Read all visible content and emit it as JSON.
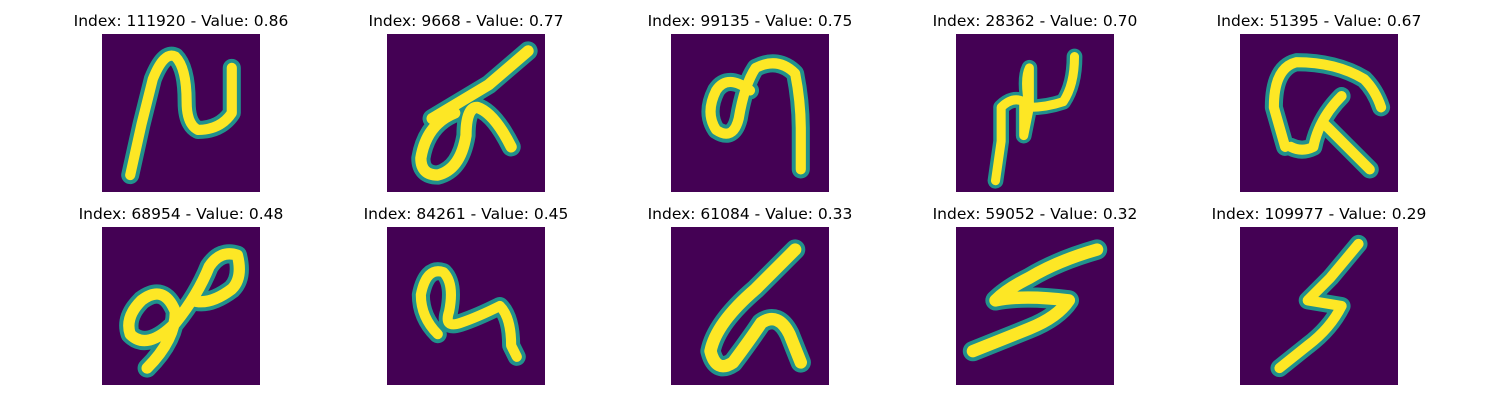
{
  "colors": {
    "background": "#440154",
    "mid": "#21918c",
    "bright": "#fde725"
  },
  "panels": [
    {
      "title": "Index: 111920 - Value: 0.86",
      "image": "handwritten glyph resembling an N shape"
    },
    {
      "title": "Index: 9668 - Value: 0.77",
      "image": "handwritten glyph with a loop and a long diagonal stroke"
    },
    {
      "title": "Index: 99135 - Value: 0.75",
      "image": "handwritten glyph resembling a looped 9"
    },
    {
      "title": "Index: 28362 - Value: 0.70",
      "image": "handwritten glyph resembling a small n with a descending tail"
    },
    {
      "title": "Index: 51395 - Value: 0.67",
      "image": "handwritten glyph with a top bar and crossed legs"
    },
    {
      "title": "Index: 68954 - Value: 0.48",
      "image": "handwritten glyph resembling a figure eight on its side"
    },
    {
      "title": "Index: 84261 - Value: 0.45",
      "image": "handwritten glyph resembling a loop followed by a hook"
    },
    {
      "title": "Index: 61084 - Value: 0.33",
      "image": "handwritten glyph resembling a looped 6 or G"
    },
    {
      "title": "Index: 59052 - Value: 0.32",
      "image": "handwritten glyph resembling a zigzag lightning bolt"
    },
    {
      "title": "Index: 109977 - Value: 0.29",
      "image": "handwritten glyph resembling a slanted 5"
    }
  ]
}
